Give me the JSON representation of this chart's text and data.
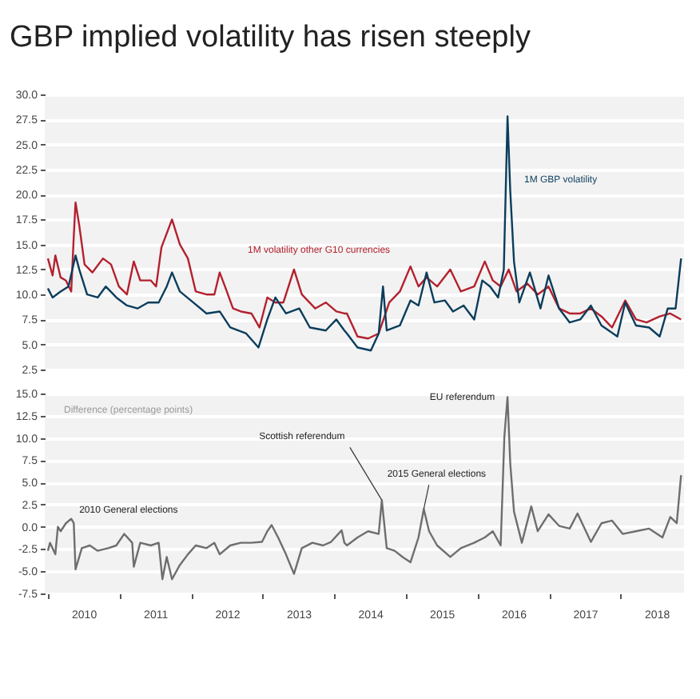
{
  "chart_data": [
    {
      "type": "line",
      "title": "GBP implied volatility has risen steeply",
      "xlim": [
        "2009-12-16",
        "2018-11-19"
      ],
      "ylim": [
        2.5,
        30
      ],
      "yticks": [
        2.5,
        {
          "value": 5,
          "label": "5.0"
        },
        7.5,
        {
          "value": 10,
          "label": "10.0"
        },
        12.5,
        {
          "value": 15,
          "label": "15.0"
        },
        17.5,
        {
          "value": 20,
          "label": "20.0"
        },
        22.5,
        {
          "value": 25,
          "label": "25.0"
        },
        27.5,
        {
          "value": 30,
          "label": "30.0"
        }
      ],
      "grid": "y",
      "tick_labels": "y",
      "series": [
        {
          "name": "1M volatility other G10 currencies",
          "color": "#b3212e",
          "x": [
            "2010-01-01",
            "2010-01-25",
            "2010-02-08",
            "2010-03-07",
            "2010-04-03",
            "2010-04-30",
            "2010-05-13",
            "2010-05-22",
            "2010-06-10",
            "2010-07-07",
            "2010-08-16",
            "2010-10-09",
            "2010-11-19",
            "2010-12-29",
            "2011-02-08",
            "2011-03-15",
            "2011-04-17",
            "2011-06-10",
            "2011-07-07",
            "2011-08-03",
            "2011-09-26",
            "2011-11-05",
            "2011-12-16",
            "2012-01-25",
            "2012-03-20",
            "2012-04-29",
            "2012-05-26",
            "2012-06-22",
            "2012-08-02",
            "2012-09-11",
            "2012-11-04",
            "2012-12-15",
            "2013-01-24",
            "2013-03-06",
            "2013-04-16",
            "2013-06-09",
            "2013-07-19",
            "2013-09-25",
            "2013-11-18",
            "2014-01-11",
            "2014-02-21",
            "2014-03-06",
            "2014-04-29",
            "2014-06-22",
            "2014-08-15",
            "2014-10-08",
            "2014-12-01",
            "2015-01-24",
            "2015-03-06",
            "2015-04-16",
            "2015-06-09",
            "2015-08-15",
            "2015-10-08",
            "2015-12-15",
            "2016-02-07",
            "2016-03-19",
            "2016-04-28",
            "2016-06-08",
            "2016-07-18",
            "2016-09-10",
            "2016-11-03",
            "2016-12-28",
            "2017-02-20",
            "2017-04-15",
            "2017-06-08",
            "2017-08-01",
            "2017-09-24",
            "2017-11-17",
            "2018-01-23",
            "2018-03-19",
            "2018-05-12",
            "2018-07-18",
            "2018-09-10",
            "2018-11-04"
          ],
          "values": [
            13.6,
            11.9,
            13.9,
            11.7,
            11.4,
            10.3,
            15.8,
            19.2,
            16.9,
            13.0,
            12.2,
            13.6,
            13.0,
            10.8,
            10.0,
            13.3,
            11.4,
            11.4,
            10.8,
            14.7,
            17.5,
            15.0,
            13.6,
            10.3,
            10.0,
            10.0,
            12.2,
            10.8,
            8.6,
            8.3,
            8.1,
            6.7,
            9.7,
            9.2,
            9.2,
            12.5,
            10.0,
            8.6,
            9.2,
            8.3,
            8.1,
            8.1,
            5.8,
            5.6,
            6.1,
            9.2,
            10.3,
            12.8,
            10.8,
            11.7,
            10.8,
            12.5,
            10.3,
            10.8,
            13.3,
            11.4,
            10.8,
            12.5,
            10.3,
            11.1,
            10.0,
            10.8,
            8.6,
            8.1,
            8.1,
            8.6,
            7.8,
            6.7,
            9.4,
            7.5,
            7.2,
            7.8,
            8.1,
            7.5
          ]
        },
        {
          "name": "1M GBP volatility",
          "color": "#0b3d5c",
          "x": [
            "2010-01-01",
            "2010-01-25",
            "2010-03-07",
            "2010-04-16",
            "2010-05-22",
            "2010-06-10",
            "2010-07-20",
            "2010-09-12",
            "2010-10-23",
            "2010-12-16",
            "2011-02-08",
            "2011-04-03",
            "2011-05-27",
            "2011-07-20",
            "2011-08-30",
            "2011-09-26",
            "2011-11-05",
            "2012-01-12",
            "2012-03-20",
            "2012-05-26",
            "2012-07-19",
            "2012-10-08",
            "2012-12-10",
            "2013-01-24",
            "2013-03-06",
            "2013-04-29",
            "2013-07-06",
            "2013-08-29",
            "2013-11-18",
            "2014-01-11",
            "2014-02-21",
            "2014-03-06",
            "2014-04-29",
            "2014-07-06",
            "2014-08-15",
            "2014-09-06",
            "2014-09-25",
            "2014-12-01",
            "2015-01-24",
            "2015-03-06",
            "2015-04-16",
            "2015-05-26",
            "2015-07-19",
            "2015-08-29",
            "2015-10-22",
            "2015-12-15",
            "2016-01-25",
            "2016-03-05",
            "2016-04-15",
            "2016-05-14",
            "2016-06-02",
            "2016-06-16",
            "2016-07-05",
            "2016-08-01",
            "2016-09-24",
            "2016-11-17",
            "2016-12-28",
            "2017-02-20",
            "2017-04-15",
            "2017-06-08",
            "2017-08-01",
            "2017-09-24",
            "2017-12-14",
            "2018-01-23",
            "2018-03-19",
            "2018-05-25",
            "2018-07-18",
            "2018-08-28",
            "2018-10-07",
            "2018-11-04"
          ],
          "values": [
            10.6,
            9.7,
            10.3,
            10.8,
            13.9,
            12.5,
            10.0,
            9.7,
            10.8,
            9.7,
            8.9,
            8.6,
            9.2,
            9.2,
            10.8,
            12.2,
            10.3,
            9.2,
            8.1,
            8.3,
            6.7,
            6.1,
            4.7,
            7.5,
            9.7,
            8.1,
            8.6,
            6.7,
            6.4,
            7.5,
            6.4,
            6.1,
            4.7,
            4.4,
            6.1,
            10.8,
            6.4,
            6.9,
            9.4,
            8.9,
            12.2,
            9.2,
            9.4,
            8.3,
            8.9,
            7.5,
            11.4,
            10.8,
            9.7,
            12.5,
            27.8,
            20.3,
            13.3,
            9.2,
            12.2,
            8.6,
            11.9,
            8.6,
            7.2,
            7.5,
            8.9,
            6.9,
            5.8,
            9.2,
            6.9,
            6.7,
            5.8,
            8.6,
            8.6,
            13.6
          ]
        }
      ]
    },
    {
      "type": "line",
      "xlim": [
        "2009-12-16",
        "2018-11-19"
      ],
      "xticks": [
        {
          "value": "2010-01-01",
          "label": null
        },
        {
          "value": "2010-07-02",
          "label": "2010"
        },
        {
          "value": "2011-01-01",
          "label": null
        },
        {
          "value": "2011-07-02",
          "label": "2011"
        },
        {
          "value": "2012-01-01",
          "label": null
        },
        {
          "value": "2012-07-02",
          "label": "2012"
        },
        {
          "value": "2013-01-01",
          "label": null
        },
        {
          "value": "2013-07-02",
          "label": "2013"
        },
        {
          "value": "2014-01-01",
          "label": null
        },
        {
          "value": "2014-07-02",
          "label": "2014"
        },
        {
          "value": "2015-01-01",
          "label": null
        },
        {
          "value": "2015-07-02",
          "label": "2015"
        },
        {
          "value": "2016-01-01",
          "label": null
        },
        {
          "value": "2016-07-02",
          "label": "2016"
        },
        {
          "value": "2017-01-01",
          "label": null
        },
        {
          "value": "2017-07-02",
          "label": "2017"
        },
        {
          "value": "2018-01-01",
          "label": null
        },
        {
          "value": "2018-07-02",
          "label": "2018"
        }
      ],
      "ylim": [
        -7.5,
        15
      ],
      "yticks": [
        -7.5,
        {
          "value": -5,
          "label": "-5.0"
        },
        -2.5,
        {
          "value": 0,
          "label": "0.0"
        },
        2.5,
        {
          "value": 5,
          "label": "5.0"
        },
        7.5,
        {
          "value": 10,
          "label": "10.0"
        },
        12.5,
        {
          "value": 15,
          "label": "15.0"
        }
      ],
      "grid": "y",
      "annotations": [
        "Difference (percentage points)",
        {
          "text": "2010 General elections",
          "x": "2010-04-30",
          "y": 0.9
        },
        {
          "text": "Scottish referendum",
          "x": "2014-08-31",
          "y": 3.0
        },
        {
          "text": "2015 General elections",
          "x": "2015-04-02",
          "y": 2.0
        },
        {
          "text": "EU referendum",
          "x": "2016-06-02",
          "y": 14.6
        }
      ],
      "series": [
        {
          "color": "#6e6e6e",
          "x": [
            "2010-01-01",
            "2010-01-12",
            "2010-02-08",
            "2010-02-21",
            "2010-03-07",
            "2010-04-03",
            "2010-04-30",
            "2010-05-13",
            "2010-05-22",
            "2010-06-23",
            "2010-08-03",
            "2010-09-12",
            "2010-11-05",
            "2010-12-16",
            "2011-01-25",
            "2011-03-07",
            "2011-03-15",
            "2011-04-17",
            "2011-06-10",
            "2011-07-20",
            "2011-08-08",
            "2011-08-30",
            "2011-09-26",
            "2011-11-05",
            "2011-12-16",
            "2012-01-25",
            "2012-03-20",
            "2012-04-29",
            "2012-05-26",
            "2012-07-19",
            "2012-09-11",
            "2012-11-04",
            "2012-12-28",
            "2013-01-24",
            "2013-02-15",
            "2013-03-20",
            "2013-04-29",
            "2013-06-09",
            "2013-07-19",
            "2013-09-11",
            "2013-11-04",
            "2013-12-15",
            "2014-02-07",
            "2014-02-21",
            "2014-03-06",
            "2014-04-29",
            "2014-06-22",
            "2014-08-15",
            "2014-08-31",
            "2014-09-25",
            "2014-11-04",
            "2014-12-15",
            "2015-01-24",
            "2015-03-06",
            "2015-04-02",
            "2015-04-29",
            "2015-06-09",
            "2015-08-15",
            "2015-10-08",
            "2015-12-15",
            "2016-02-07",
            "2016-03-19",
            "2016-04-28",
            "2016-05-17",
            "2016-06-02",
            "2016-06-16",
            "2016-07-05",
            "2016-08-14",
            "2016-10-01",
            "2016-11-03",
            "2016-12-28",
            "2017-02-20",
            "2017-04-15",
            "2017-05-25",
            "2017-08-01",
            "2017-09-24",
            "2017-11-17",
            "2018-01-10",
            "2018-03-19",
            "2018-05-25",
            "2018-08-01",
            "2018-09-10",
            "2018-10-13",
            "2018-11-04"
          ],
          "values": [
            -2.7,
            -1.8,
            -3.1,
            0.0,
            -0.5,
            0.4,
            0.9,
            0.4,
            -4.8,
            -2.4,
            -2.1,
            -2.7,
            -2.4,
            -2.1,
            -0.8,
            -1.8,
            -4.5,
            -1.8,
            -2.1,
            -1.8,
            -5.9,
            -3.4,
            -5.9,
            -4.3,
            -3.1,
            -2.1,
            -2.4,
            -1.8,
            -3.1,
            -2.1,
            -1.8,
            -1.8,
            -1.7,
            -0.5,
            0.2,
            -1.2,
            -3.1,
            -5.3,
            -2.4,
            -1.8,
            -2.1,
            -1.7,
            -0.4,
            -1.8,
            -2.1,
            -1.2,
            -0.5,
            -0.8,
            3.0,
            -2.4,
            -2.7,
            -3.4,
            -4.0,
            -1.2,
            2.0,
            -0.5,
            -2.1,
            -3.4,
            -2.4,
            -1.8,
            -1.2,
            -0.5,
            -2.1,
            10.2,
            14.6,
            7.1,
            1.7,
            -1.8,
            2.3,
            -0.5,
            1.4,
            0.1,
            -0.2,
            1.5,
            -1.7,
            0.4,
            0.7,
            -0.8,
            -0.5,
            -0.2,
            -1.2,
            1.1,
            0.4,
            5.8
          ]
        }
      ]
    }
  ]
}
